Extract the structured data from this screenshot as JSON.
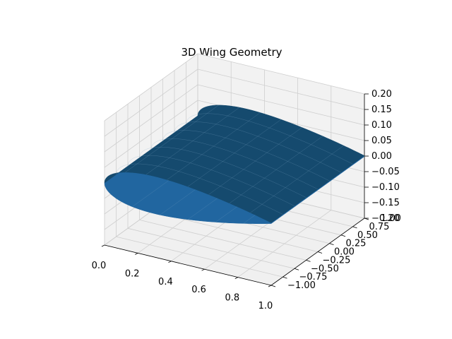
{
  "chart_data": {
    "type": "surface",
    "title": "3D Wing Geometry",
    "xlabel": "",
    "ylabel": "",
    "zlabel": "",
    "xlim": [
      0.0,
      1.0
    ],
    "ylim": [
      -1.0,
      1.0
    ],
    "zlim": [
      -0.2,
      0.2
    ],
    "x_ticks": [
      "0.0",
      "0.2",
      "0.4",
      "0.6",
      "0.8",
      "1.0"
    ],
    "y_ticks": [
      "−1.00",
      "−0.75",
      "−0.50",
      "−0.25",
      "0.00",
      "0.25",
      "0.50",
      "0.75",
      "1.00"
    ],
    "z_ticks": [
      "−0.20",
      "−0.15",
      "−0.10",
      "−0.05",
      "0.00",
      "0.05",
      "0.10",
      "0.15",
      "0.20"
    ],
    "grid": true,
    "surface": {
      "description_of_shape": "symmetric airfoil extruded along span",
      "max_thickness": 0.12,
      "span": [
        -1.0,
        1.0
      ],
      "chord": [
        0.0,
        1.0
      ],
      "color_top": "#154a6e",
      "color_bottom": "#2166a0",
      "edge_color": "#7fa6c4"
    }
  }
}
